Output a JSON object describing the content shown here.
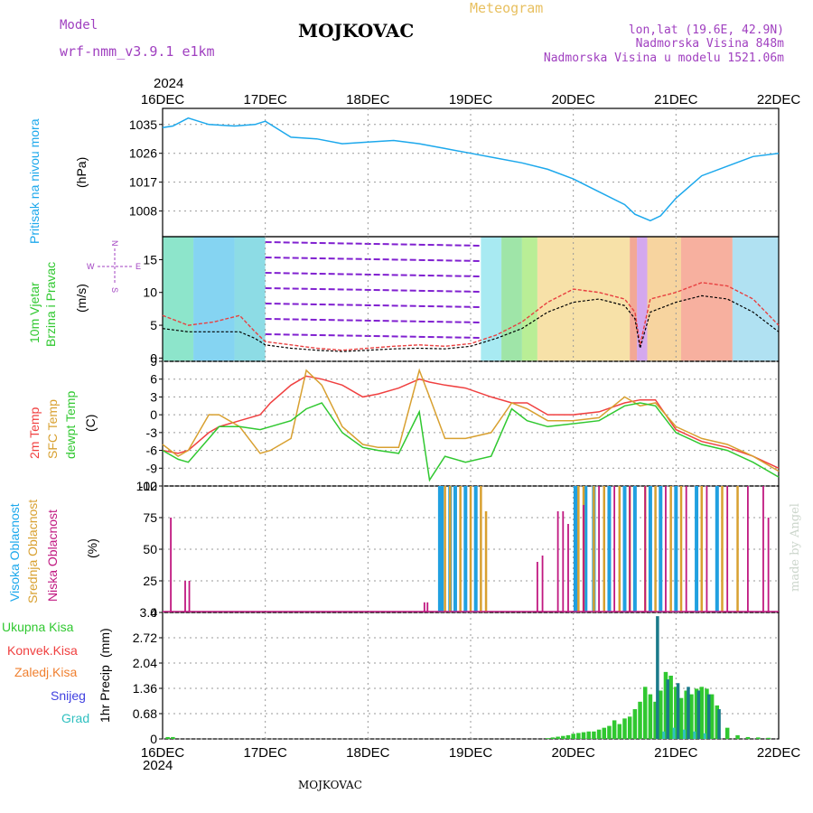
{
  "header": {
    "model_label": "Model",
    "model_name": "wrf-nmm_v3.9.1 e1km",
    "location": "MOJKOVAC",
    "chart_kind": "Meteogram",
    "coords": "lon,lat (19.6E, 42.9N)",
    "elevation": "Nadmorska Visina 848m",
    "model_elevation": "Nadmorska Visina u modelu 1521.06m",
    "footer_location": "MOJKOVAC",
    "watermark": "made by Angel",
    "year_top": "2024",
    "year_bottom": "2024"
  },
  "colors": {
    "pressure": "#1ca8ec",
    "temp2m": "#f04040",
    "tempsfc": "#d8a030",
    "dewpt": "#30c830",
    "cloud_high": "#20a0e0",
    "cloud_mid": "#d8a030",
    "cloud_low": "#c01880",
    "precip_total": "#30c830",
    "precip_conv": "#f04040",
    "precip_frozen": "#f08030",
    "precip_snow": "#4040e0",
    "precip_grad": "#30c0c0",
    "wind_gust": "#e84040",
    "wind_mean": "#000000",
    "purple": "#a040c0"
  },
  "x_axis": {
    "tick_labels": [
      "16DEC",
      "17DEC",
      "18DEC",
      "19DEC",
      "20DEC",
      "21DEC",
      "22DEC"
    ]
  },
  "chart_data": [
    {
      "type": "line",
      "id": "pressure",
      "ylabel_lines": [
        "Pritisak na nivou mora"
      ],
      "unit": "(hPa)",
      "yticks": [
        1008,
        1017,
        1026,
        1035
      ],
      "ylim": [
        1000,
        1040
      ],
      "x": [
        0,
        0.1,
        0.25,
        0.45,
        0.7,
        0.9,
        1.0,
        1.1,
        1.25,
        1.5,
        1.75,
        2.0,
        2.25,
        2.5,
        2.75,
        3.0,
        3.25,
        3.5,
        3.75,
        4.0,
        4.25,
        4.5,
        4.6,
        4.75,
        4.85,
        5.0,
        5.25,
        5.5,
        5.75,
        6.0
      ],
      "series": [
        {
          "values": [
            1034,
            1034.5,
            1037,
            1035,
            1034.5,
            1035,
            1036,
            1034,
            1031,
            1030.5,
            1029,
            1029.5,
            1030,
            1029,
            1027.5,
            1026,
            1024.5,
            1023,
            1021,
            1018,
            1014,
            1010,
            1007,
            1005,
            1006.5,
            1012,
            1019,
            1022,
            1025,
            1026
          ]
        }
      ]
    },
    {
      "type": "line",
      "id": "wind",
      "ylabel_lines": [
        "10m Vjetar",
        "Brzina i Pravac"
      ],
      "unit": "(m/s)",
      "compass": {
        "n": "N",
        "s": "S",
        "e": "E",
        "w": "W"
      },
      "yticks": [
        0,
        5,
        10,
        15
      ],
      "ylim": [
        -0.5,
        18.5
      ],
      "x": [
        0,
        0.25,
        0.5,
        0.75,
        0.9,
        1.0,
        1.25,
        1.5,
        1.75,
        2.0,
        2.25,
        2.5,
        2.75,
        3.0,
        3.25,
        3.5,
        3.75,
        4.0,
        4.25,
        4.5,
        4.6,
        4.65,
        4.75,
        5.0,
        5.25,
        5.5,
        5.75,
        6.0
      ],
      "series": [
        {
          "values": [
            6.5,
            5,
            5.5,
            6.5,
            4,
            2.5,
            2,
            1.5,
            1.2,
            1.5,
            1.8,
            2,
            1.8,
            2.2,
            3.5,
            5.5,
            8.5,
            10.5,
            10,
            9,
            7,
            2,
            9,
            10,
            11.5,
            11,
            9,
            5
          ]
        },
        {
          "values": [
            4.5,
            4,
            4,
            4,
            3,
            2,
            1.5,
            1.2,
            1,
            1.2,
            1.4,
            1.5,
            1.4,
            1.8,
            3,
            4.5,
            7,
            8.5,
            9,
            8,
            6,
            1.5,
            7,
            8.5,
            9.5,
            9,
            7,
            4
          ]
        }
      ]
    },
    {
      "type": "line",
      "id": "temperature",
      "ylabel_lines": [
        "2m Temp",
        "SFC Temp",
        "dewpt Temp"
      ],
      "unit": "(C)",
      "yticks": [
        -12,
        -9,
        -6,
        -3,
        0,
        3,
        6,
        9
      ],
      "ylim": [
        -12,
        9
      ],
      "x": [
        0,
        0.15,
        0.25,
        0.45,
        0.55,
        0.75,
        0.95,
        1.05,
        1.25,
        1.4,
        1.55,
        1.75,
        1.95,
        2.1,
        2.3,
        2.5,
        2.6,
        2.75,
        2.95,
        3.2,
        3.4,
        3.55,
        3.75,
        4.0,
        4.25,
        4.5,
        4.65,
        4.8,
        5.0,
        5.25,
        5.5,
        5.75,
        6.0
      ],
      "series": [
        {
          "values": [
            -6,
            -6.5,
            -6,
            -3,
            -2,
            -1,
            0,
            2,
            5,
            6.5,
            6,
            5,
            3,
            3.5,
            4.5,
            6,
            5.5,
            5,
            4.5,
            3,
            2,
            2,
            0,
            0,
            0.5,
            2,
            2.5,
            2.5,
            -2.5,
            -4.5,
            -5.5,
            -7,
            -9
          ]
        },
        {
          "values": [
            -5,
            -7,
            -6,
            0,
            0,
            -2,
            -6.5,
            -6,
            -4,
            7.5,
            5,
            -2,
            -5,
            -5.5,
            -5.5,
            7.5,
            3,
            -4,
            -4,
            -3,
            2,
            1,
            -1,
            -1,
            -0.5,
            3,
            1.5,
            2,
            -2,
            -4,
            -5,
            -7,
            -9.5
          ]
        },
        {
          "values": [
            -6,
            -7.5,
            -8,
            -4,
            -2,
            -2,
            -2.5,
            -2,
            -1,
            1,
            2,
            -3,
            -5.5,
            -6,
            -6.5,
            0.5,
            -11,
            -7,
            -8,
            -7,
            1,
            -1,
            -2,
            -1.5,
            -1,
            1.5,
            2,
            1.5,
            -3,
            -5,
            -6,
            -8,
            -10.5
          ]
        }
      ]
    },
    {
      "type": "bar",
      "id": "clouds",
      "ylabel_lines": [
        "Visoka Oblacnost",
        "Srednja Oblacnost",
        "Niska Oblacnost"
      ],
      "unit": "(%)",
      "yticks": [
        0,
        25,
        50,
        75,
        100
      ],
      "ylim": [
        0,
        100
      ],
      "series": [
        {
          "name": "Visoka Oblacnost",
          "x": [
            2.7,
            2.72,
            2.8,
            2.85,
            2.95,
            3.05,
            4.02,
            4.04,
            4.12,
            4.2,
            4.35,
            4.5,
            4.6,
            4.75,
            4.85,
            5.0,
            5.2,
            5.4
          ],
          "values": [
            100,
            100,
            100,
            100,
            100,
            100,
            100,
            100,
            100,
            100,
            100,
            100,
            100,
            100,
            100,
            100,
            100,
            100
          ]
        },
        {
          "name": "Srednja Oblacnost",
          "x": [
            2.75,
            2.8,
            2.9,
            3.0,
            3.1,
            3.15,
            4.05,
            4.1,
            4.2,
            4.3,
            4.45,
            4.55,
            4.7,
            4.8,
            4.95,
            5.05,
            5.25,
            5.45,
            5.6
          ],
          "values": [
            100,
            100,
            100,
            100,
            100,
            80,
            100,
            100,
            100,
            100,
            100,
            100,
            100,
            100,
            100,
            100,
            100,
            100,
            100
          ]
        },
        {
          "name": "Niska Oblacnost",
          "x": [
            0.08,
            0.22,
            0.26,
            2.55,
            2.58,
            3.65,
            3.7,
            3.85,
            3.9,
            3.95,
            4.1,
            4.25,
            4.4,
            4.55,
            4.7,
            4.9,
            5.1,
            5.3,
            5.5,
            5.7,
            5.85,
            5.9
          ],
          "values": [
            75,
            25,
            25,
            8,
            8,
            40,
            45,
            80,
            80,
            70,
            85,
            100,
            100,
            100,
            100,
            100,
            100,
            100,
            100,
            100,
            100,
            75
          ]
        }
      ]
    },
    {
      "type": "bar",
      "id": "precip",
      "ylabel_lines": [
        "1hr Precip"
      ],
      "unit": "(mm)",
      "legend": [
        "Ukupna Kisa",
        "Konvek.Kisa",
        "Zaledj.Kisa",
        "Snijeg",
        "Grad"
      ],
      "yticks": [
        0,
        0.68,
        1.36,
        2.04,
        2.72,
        3.4
      ],
      "ylim": [
        0,
        3.4
      ],
      "series": [
        {
          "name": "Ukupna Kisa",
          "x": [
            0.05,
            0.1,
            3.75,
            3.8,
            3.85,
            3.9,
            3.95,
            4.0,
            4.05,
            4.1,
            4.15,
            4.2,
            4.25,
            4.3,
            4.35,
            4.4,
            4.45,
            4.5,
            4.55,
            4.6,
            4.65,
            4.7,
            4.75,
            4.8,
            4.85,
            4.9,
            4.95,
            5.0,
            5.05,
            5.1,
            5.15,
            5.2,
            5.25,
            5.3,
            5.35,
            5.4,
            5.5,
            5.6,
            5.7,
            5.8,
            5.9
          ],
          "values": [
            0.05,
            0.05,
            0.02,
            0.04,
            0.06,
            0.08,
            0.1,
            0.14,
            0.16,
            0.18,
            0.2,
            0.2,
            0.25,
            0.3,
            0.35,
            0.5,
            0.4,
            0.55,
            0.6,
            0.8,
            1.0,
            1.4,
            1.2,
            1.0,
            1.3,
            1.8,
            1.7,
            1.4,
            1.1,
            1.3,
            1.2,
            1.35,
            1.4,
            1.35,
            1.2,
            0.9,
            0.3,
            0.1,
            0.05,
            0.04,
            0.03
          ]
        },
        {
          "name": "Snijeg",
          "x": [
            4.82,
            4.92,
            5.02,
            5.12,
            5.22,
            5.32,
            5.42
          ],
          "values": [
            3.3,
            1.6,
            1.5,
            1.4,
            1.3,
            1.2,
            0.8
          ]
        },
        {
          "name": "Grad",
          "x": [
            4.88,
            4.98,
            5.08,
            5.18,
            5.28
          ],
          "values": [
            0.2,
            0.3,
            0.25,
            0.2,
            0.15
          ]
        }
      ]
    }
  ]
}
